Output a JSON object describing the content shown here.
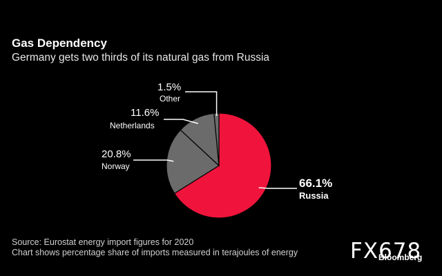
{
  "header": {
    "title": "Gas Dependency",
    "subtitle": "Germany gets two thirds of its natural gas from Russia"
  },
  "footer": {
    "source": "Source: Eurostat energy import figures for 2020",
    "note": "Chart shows percentage share of imports measured in terajoules of energy"
  },
  "watermark": "FX678",
  "brand": "Bloomberg",
  "colors": {
    "russia": "#f0143c",
    "norway": "#6b6b6b",
    "netherlands": "#6b6b6b",
    "other": "#6b6b6b",
    "slice_border": "#000000",
    "leader_line": "#ffffff"
  },
  "chart_data": {
    "type": "pie",
    "title": "Gas Dependency",
    "subtitle": "Germany gets two thirds of its natural gas from Russia",
    "slices": [
      {
        "name": "Russia",
        "value": 66.1,
        "label": "66.1%"
      },
      {
        "name": "Norway",
        "value": 20.8,
        "label": "20.8%"
      },
      {
        "name": "Netherlands",
        "value": 11.6,
        "label": "11.6%"
      },
      {
        "name": "Other",
        "value": 1.5,
        "label": "1.5%"
      }
    ]
  }
}
